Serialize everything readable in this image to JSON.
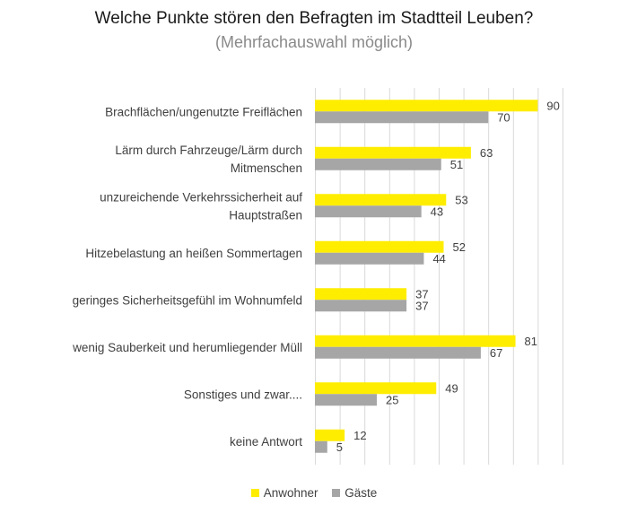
{
  "chart_data": {
    "type": "bar",
    "orientation": "horizontal",
    "title": "Welche Punkte stören den Befragten im Stadtteil Leuben?",
    "subtitle": "(Mehrfachauswahl möglich)",
    "categories": [
      [
        "Brachflächen/ungenutzte Freiflächen"
      ],
      [
        "Lärm durch Fahrzeuge/Lärm durch",
        "Mitmenschen"
      ],
      [
        "unzureichende Verkehrssicherheit auf",
        "Hauptstraßen"
      ],
      [
        "Hitzebelastung an heißen Sommertagen"
      ],
      [
        "geringes Sicherheitsgefühl im Wohnumfeld"
      ],
      [
        "wenig Sauberkeit und herumliegender Müll"
      ],
      [
        "Sonstiges und zwar...."
      ],
      [
        "keine Antwort"
      ]
    ],
    "series": [
      {
        "name": "Anwohner",
        "color": "#FFED00",
        "values": [
          90,
          63,
          53,
          52,
          37,
          81,
          49,
          12
        ]
      },
      {
        "name": "Gäste",
        "color": "#A6A6A6",
        "values": [
          70,
          51,
          43,
          44,
          37,
          67,
          25,
          5
        ]
      }
    ],
    "xlim": [
      0,
      100
    ],
    "grid": true,
    "legend_position": "bottom",
    "data_labels": true
  }
}
